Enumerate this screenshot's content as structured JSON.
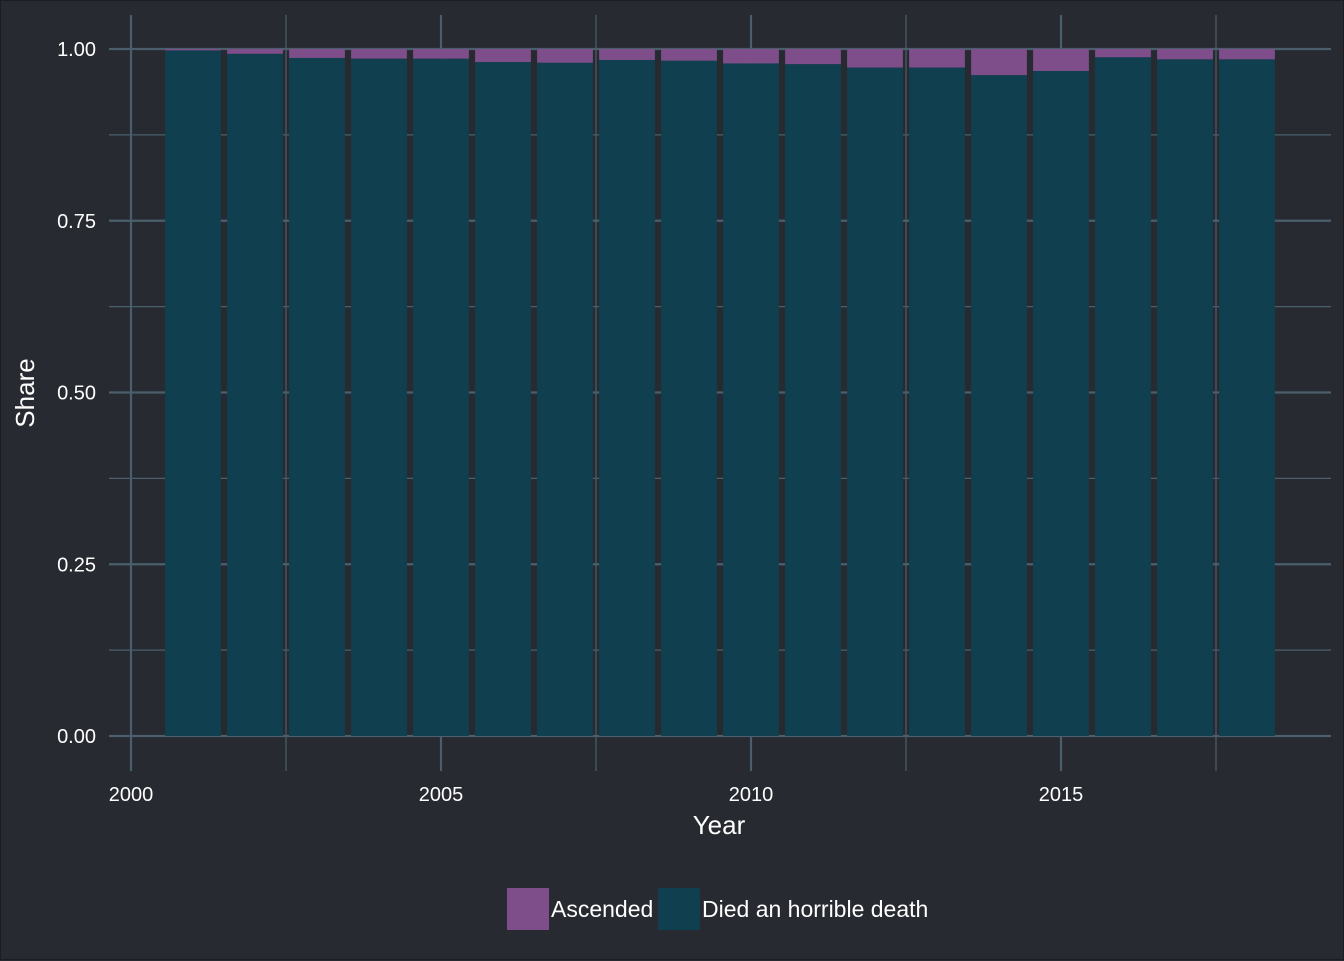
{
  "chart_data": {
    "type": "bar",
    "stacked": true,
    "xlabel": "Year",
    "ylabel": "Share",
    "x": [
      2001,
      2002,
      2003,
      2004,
      2005,
      2006,
      2007,
      2008,
      2009,
      2010,
      2011,
      2012,
      2013,
      2014,
      2015,
      2016,
      2017,
      2018
    ],
    "series": [
      {
        "name": "Died an horrible death",
        "color": "#10404f",
        "values": [
          0.998,
          0.993,
          0.987,
          0.986,
          0.986,
          0.981,
          0.98,
          0.984,
          0.983,
          0.979,
          0.978,
          0.973,
          0.973,
          0.962,
          0.968,
          0.988,
          0.985,
          0.985
        ]
      },
      {
        "name": "Ascended",
        "color": "#7d4e8a",
        "values": [
          0.002,
          0.007,
          0.013,
          0.014,
          0.014,
          0.019,
          0.02,
          0.016,
          0.017,
          0.021,
          0.022,
          0.027,
          0.027,
          0.038,
          0.032,
          0.012,
          0.015,
          0.015
        ]
      }
    ],
    "xlim": [
      2000,
      2019
    ],
    "ylim": [
      0,
      1
    ],
    "x_ticks": [
      2000,
      2005,
      2010,
      2015
    ],
    "x_tick_labels": [
      "2000",
      "2005",
      "2010",
      "2015"
    ],
    "y_ticks": [
      0,
      0.25,
      0.5,
      0.75,
      1
    ],
    "y_tick_labels": [
      "0.00",
      "0.25",
      "0.50",
      "0.75",
      "1.00"
    ],
    "legend": {
      "position": "bottom",
      "entries": [
        {
          "label": "Ascended",
          "color": "#7d4e8a"
        },
        {
          "label": "Died an horrible death",
          "color": "#10404f"
        }
      ]
    },
    "grid": true,
    "background_color": "#272a30",
    "grid_color": "#4a5f6b"
  }
}
